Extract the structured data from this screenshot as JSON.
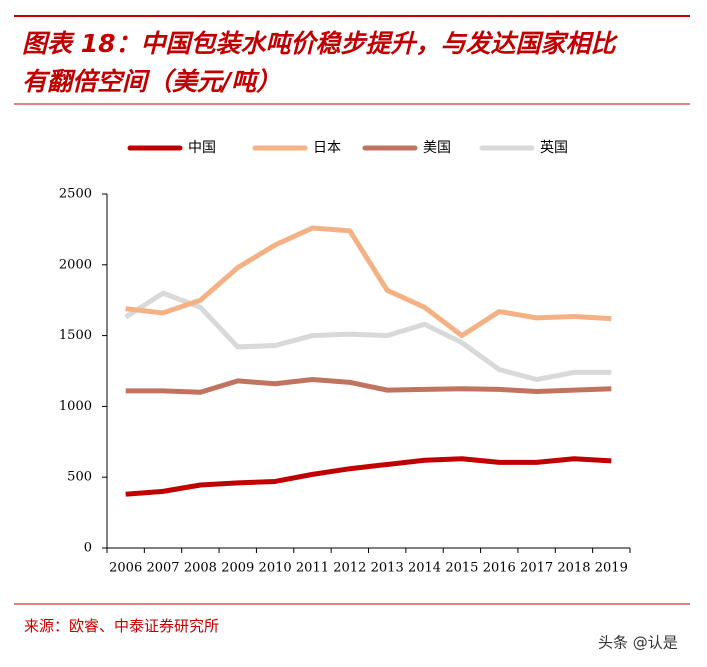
{
  "chart_data": {
    "type": "line",
    "title": [
      "图表 18：中国包装水吨价稳步提升，与发达国家相比",
      "有翻倍空间（美元/吨）"
    ],
    "categories": [
      "2006",
      "2007",
      "2008",
      "2009",
      "2010",
      "2011",
      "2012",
      "2013",
      "2014",
      "2015",
      "2016",
      "2017",
      "2018",
      "2019"
    ],
    "series": [
      {
        "name": "中国",
        "color": "#c00000",
        "values": [
          380,
          400,
          445,
          460,
          470,
          520,
          560,
          590,
          620,
          630,
          605,
          605,
          630,
          615
        ]
      },
      {
        "name": "日本",
        "color": "#f4b183",
        "values": [
          1690,
          1660,
          1750,
          1980,
          2140,
          2260,
          2240,
          1820,
          1700,
          1500,
          1670,
          1625,
          1635,
          1620
        ]
      },
      {
        "name": "美国",
        "color": "#c0735f",
        "values": [
          1110,
          1110,
          1100,
          1180,
          1160,
          1190,
          1170,
          1115,
          1120,
          1125,
          1120,
          1105,
          1115,
          1125
        ]
      },
      {
        "name": "英国",
        "color": "#d9d9d9",
        "values": [
          1630,
          1800,
          1700,
          1420,
          1430,
          1500,
          1510,
          1500,
          1580,
          1450,
          1260,
          1190,
          1240,
          1240
        ]
      }
    ],
    "ylim": [
      0,
      2500
    ],
    "yticks": [
      0,
      500,
      1000,
      1500,
      2000,
      2500
    ],
    "grid": false,
    "source": "来源：欧睿、中泰证券研究所",
    "watermark": "头条 @认是"
  }
}
